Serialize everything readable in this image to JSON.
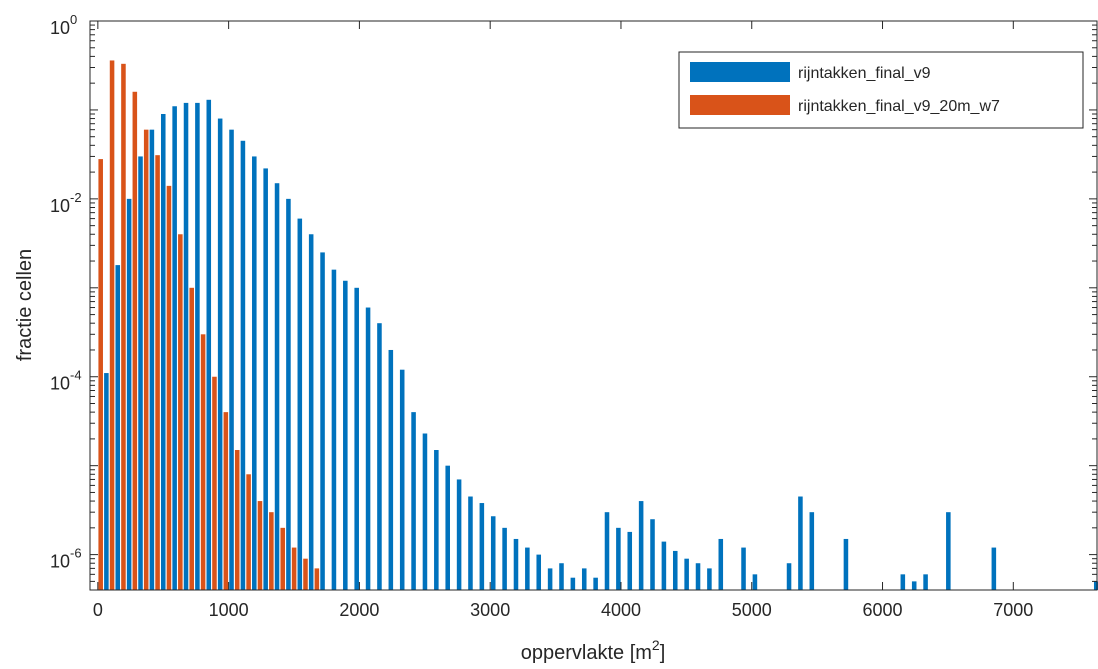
{
  "chart_data": {
    "type": "bar",
    "title": "",
    "xlabel": {
      "text": "oppervlakte [m",
      "sup": "2",
      "close": "]"
    },
    "ylabel": "fractie cellen",
    "xlim": [
      -60,
      7640
    ],
    "ylim": [
      4e-07,
      1
    ],
    "yscale": "log",
    "grid": false,
    "legend_position": "top-right",
    "x_ticks": [
      {
        "value": 0,
        "label": "0"
      },
      {
        "value": 1000,
        "label": "1000"
      },
      {
        "value": 2000,
        "label": "2000"
      },
      {
        "value": 3000,
        "label": "3000"
      },
      {
        "value": 4000,
        "label": "4000"
      },
      {
        "value": 5000,
        "label": "5000"
      },
      {
        "value": 6000,
        "label": "6000"
      },
      {
        "value": 7000,
        "label": "7000"
      }
    ],
    "y_ticks": [
      {
        "value": 1e-06,
        "base": "10",
        "exp": "-6"
      },
      {
        "value": 0.0001,
        "base": "10",
        "exp": "-4"
      },
      {
        "value": 0.01,
        "base": "10",
        "exp": "-2"
      },
      {
        "value": 1,
        "base": "10",
        "exp": "0"
      }
    ],
    "bin_width": 87,
    "series": [
      {
        "name": "rijntakken_final_v9",
        "color": "#0072BD",
        "x": [
          43.5,
          130.5,
          217.5,
          304.5,
          391.5,
          478.5,
          565.5,
          652.5,
          739.5,
          826.5,
          913.5,
          1000.5,
          1087.5,
          1174.5,
          1261.5,
          1348.5,
          1435.5,
          1522.5,
          1609.5,
          1696.5,
          1783.5,
          1870.5,
          1957.5,
          2044.5,
          2131.5,
          2218.5,
          2305.5,
          2392.5,
          2479.5,
          2566.5,
          2653.5,
          2740.5,
          2827.5,
          2914.5,
          3001.5,
          3088.5,
          3175.5,
          3262.5,
          3349.5,
          3436.5,
          3523.5,
          3610.5,
          3697.5,
          3784.5,
          3871.5,
          3958.5,
          4045.5,
          4132.5,
          4219.5,
          4306.5,
          4393.5,
          4480.5,
          4567.5,
          4654.5,
          4741.5,
          4915.5,
          5002.5,
          5263.5,
          5350.5,
          5437.5,
          5698.5,
          6133.5,
          6220.5,
          6307.5,
          6481.5,
          6829.5,
          7003.5,
          7612.5
        ],
        "values": [
          0.00011,
          0.0018,
          0.01,
          0.03,
          0.06,
          0.09,
          0.11,
          0.12,
          0.12,
          0.13,
          0.08,
          0.06,
          0.045,
          0.03,
          0.022,
          0.015,
          0.01,
          0.006,
          0.004,
          0.0025,
          0.0016,
          0.0012,
          0.001,
          0.0006,
          0.0004,
          0.0002,
          0.00012,
          4e-05,
          2.3e-05,
          1.5e-05,
          1e-05,
          7e-06,
          4.5e-06,
          3.8e-06,
          2.7e-06,
          2e-06,
          1.5e-06,
          1.2e-06,
          1e-06,
          7e-07,
          8e-07,
          5.5e-07,
          7e-07,
          5.5e-07,
          3e-06,
          2e-06,
          1.8e-06,
          4e-06,
          2.5e-06,
          1.4e-06,
          1.1e-06,
          9e-07,
          8e-07,
          7e-07,
          1.5e-06,
          1.2e-06,
          6e-07,
          8e-07,
          4.5e-06,
          3e-06,
          1.5e-06,
          6e-07,
          5e-07,
          6e-07,
          3e-06,
          1.2e-06,
          4e-07,
          5e-07
        ]
      },
      {
        "name": "rijntakken_final_v9_20m_w7",
        "color": "#D95319",
        "x": [
          43.5,
          130.5,
          217.5,
          304.5,
          391.5,
          478.5,
          565.5,
          652.5,
          739.5,
          826.5,
          913.5,
          1000.5,
          1087.5,
          1174.5,
          1261.5,
          1348.5,
          1435.5,
          1522.5,
          1609.5,
          1696.5
        ],
        "values": [
          0.028,
          0.36,
          0.33,
          0.16,
          0.06,
          0.031,
          0.014,
          0.004,
          0.001,
          0.0003,
          0.0001,
          4e-05,
          1.5e-05,
          8e-06,
          4e-06,
          3e-06,
          2e-06,
          1.2e-06,
          9e-07,
          7e-07
        ]
      }
    ]
  }
}
